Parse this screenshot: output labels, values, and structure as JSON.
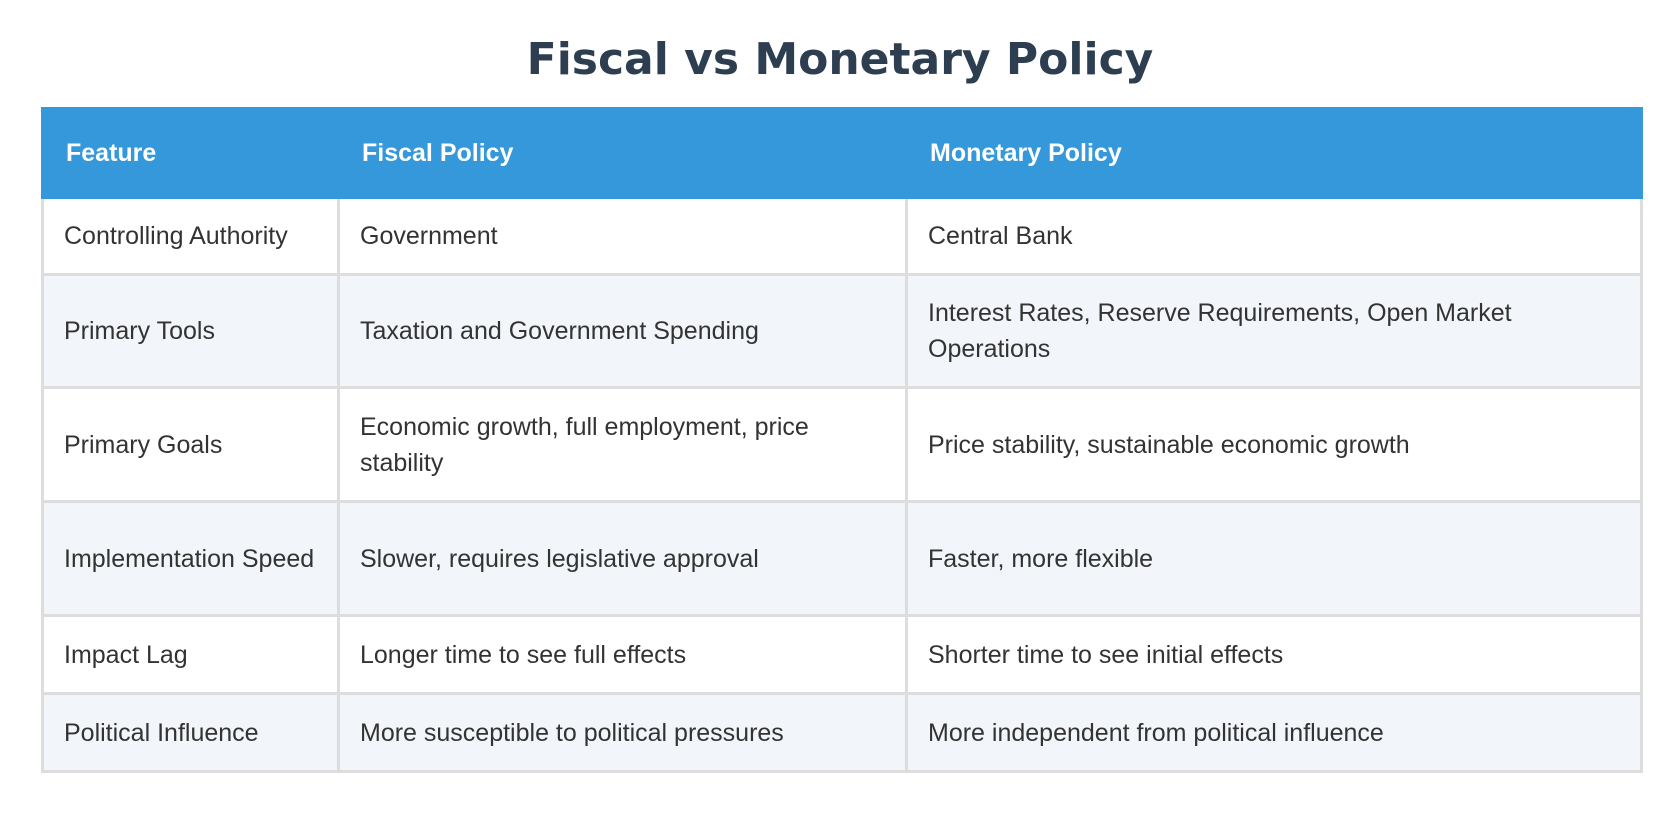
{
  "title": "Fiscal vs Monetary Policy",
  "table": {
    "headers": [
      "Feature",
      "Fiscal Policy",
      "Monetary Policy"
    ],
    "rows": [
      [
        "Controlling Authority",
        "Government",
        "Central Bank"
      ],
      [
        "Primary Tools",
        "Taxation and Government Spending",
        "Interest Rates, Reserve Requirements, Open Market Operations"
      ],
      [
        "Primary Goals",
        "Economic growth, full employment, price stability",
        "Price stability, sustainable economic growth"
      ],
      [
        "Implementation Speed",
        "Slower, requires legislative approval",
        "Faster, more flexible"
      ],
      [
        "Impact Lag",
        "Longer time to see full effects",
        "Shorter time to see initial effects"
      ],
      [
        "Political Influence",
        "More susceptible to political pressures",
        "More independent from political influence"
      ]
    ]
  },
  "colors": {
    "title": "#2c3e50",
    "header_bg": "#3498db",
    "header_text": "#ffffff",
    "row_alt_bg": "#f2f5f9",
    "border": "#dddddd"
  }
}
